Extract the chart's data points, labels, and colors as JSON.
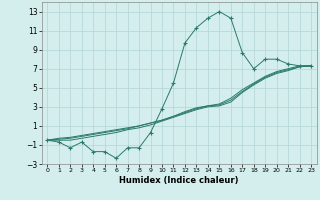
{
  "xlabel": "Humidex (Indice chaleur)",
  "bg_color": "#d4eded",
  "grid_color": "#b8d8d8",
  "line_color": "#2a7a6a",
  "x_humidex": [
    0,
    1,
    2,
    3,
    4,
    5,
    6,
    7,
    8,
    9,
    10,
    11,
    12,
    13,
    14,
    15,
    16,
    17,
    18,
    19,
    20,
    21,
    22,
    23
  ],
  "y_main": [
    -0.5,
    -0.7,
    -1.3,
    -0.7,
    -1.7,
    -1.7,
    -2.4,
    -1.3,
    -1.3,
    0.3,
    2.8,
    5.5,
    9.7,
    11.3,
    12.3,
    13.0,
    12.3,
    8.7,
    7.0,
    8.0,
    8.0,
    7.5,
    7.3,
    7.3
  ],
  "y_line2": [
    -0.5,
    -0.3,
    -0.2,
    0.0,
    0.2,
    0.4,
    0.6,
    0.8,
    1.0,
    1.3,
    1.6,
    2.0,
    2.4,
    2.8,
    3.1,
    3.3,
    3.9,
    4.8,
    5.5,
    6.2,
    6.7,
    7.0,
    7.3,
    7.3
  ],
  "y_line3": [
    -0.5,
    -0.4,
    -0.3,
    -0.1,
    0.1,
    0.3,
    0.5,
    0.7,
    1.0,
    1.3,
    1.6,
    2.0,
    2.5,
    2.9,
    3.1,
    3.2,
    3.7,
    4.6,
    5.4,
    6.1,
    6.6,
    6.9,
    7.2,
    7.3
  ],
  "y_line4": [
    -0.5,
    -0.5,
    -0.5,
    -0.3,
    -0.1,
    0.1,
    0.3,
    0.6,
    0.8,
    1.1,
    1.5,
    1.9,
    2.3,
    2.7,
    3.0,
    3.1,
    3.5,
    4.5,
    5.3,
    6.0,
    6.5,
    6.8,
    7.2,
    7.3
  ],
  "ylim": [
    -3,
    14
  ],
  "xlim": [
    -0.5,
    23.5
  ],
  "yticks": [
    -3,
    -1,
    1,
    3,
    5,
    7,
    9,
    11,
    13
  ],
  "xticks": [
    0,
    1,
    2,
    3,
    4,
    5,
    6,
    7,
    8,
    9,
    10,
    11,
    12,
    13,
    14,
    15,
    16,
    17,
    18,
    19,
    20,
    21,
    22,
    23
  ],
  "xlabel_fontsize": 6,
  "ytick_fontsize": 5.5,
  "xtick_fontsize": 4.5,
  "marker": "+",
  "markersize": 3,
  "markeredgewidth": 0.8,
  "linewidth": 0.7
}
